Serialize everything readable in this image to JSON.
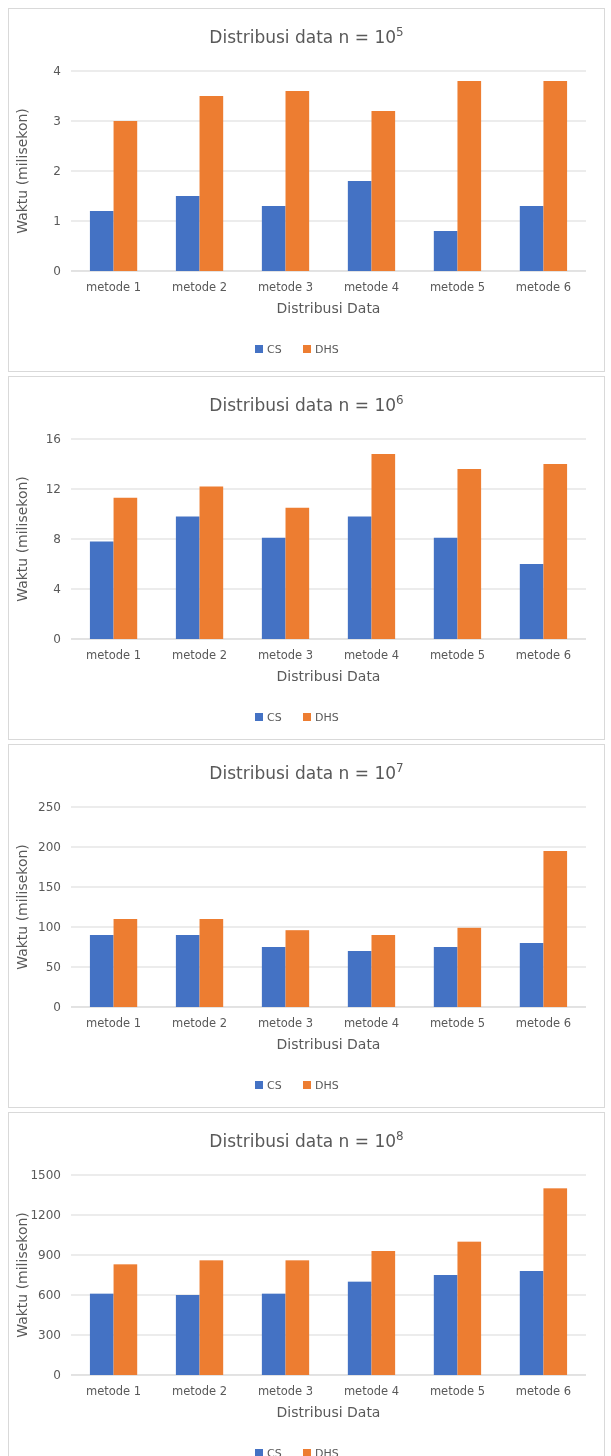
{
  "chart_data": [
    {
      "type": "bar",
      "title": "Distribusi data n = 10$^{5}$",
      "xlabel": "Distribusi Data",
      "ylabel": "Waktu (milisekon)",
      "categories": [
        "metode 1",
        "metode 2",
        "metode 3",
        "metode 4",
        "metode 5",
        "metode 6"
      ],
      "series": [
        {
          "name": "CS",
          "color": "#4472c4",
          "values": [
            1.2,
            1.5,
            1.3,
            1.8,
            0.8,
            1.3
          ]
        },
        {
          "name": "DHS",
          "color": "#ed7d31",
          "values": [
            3.0,
            3.5,
            3.6,
            3.2,
            3.8,
            3.8
          ]
        }
      ],
      "ylim": [
        0,
        4
      ],
      "yticks": [
        0,
        1,
        2,
        3,
        4
      ],
      "grid": "y",
      "legend": "bottom"
    },
    {
      "type": "bar",
      "title": "Distribusi data n = 10$^{6}$",
      "xlabel": "Distribusi Data",
      "ylabel": "Waktu (milisekon)",
      "categories": [
        "metode 1",
        "metode 2",
        "metode 3",
        "metode 4",
        "metode 5",
        "metode 6"
      ],
      "series": [
        {
          "name": "CS",
          "color": "#4472c4",
          "values": [
            7.8,
            9.8,
            8.1,
            9.8,
            8.1,
            6.0
          ]
        },
        {
          "name": "DHS",
          "color": "#ed7d31",
          "values": [
            11.3,
            12.2,
            10.5,
            14.8,
            13.6,
            14.0
          ]
        }
      ],
      "ylim": [
        0,
        16
      ],
      "yticks": [
        0,
        4,
        8,
        12,
        16
      ],
      "grid": "y",
      "legend": "bottom"
    },
    {
      "type": "bar",
      "title": "Distribusi data n = 10$^{7}$",
      "xlabel": "Distribusi Data",
      "ylabel": "Waktu (milisekon)",
      "categories": [
        "metode 1",
        "metode 2",
        "metode 3",
        "metode 4",
        "metode 5",
        "metode 6"
      ],
      "series": [
        {
          "name": "CS",
          "color": "#4472c4",
          "values": [
            90,
            90,
            75,
            70,
            75,
            80
          ]
        },
        {
          "name": "DHS",
          "color": "#ed7d31",
          "values": [
            110,
            110,
            96,
            90,
            99,
            195
          ]
        }
      ],
      "ylim": [
        0,
        250
      ],
      "yticks": [
        0,
        50,
        100,
        150,
        200,
        250
      ],
      "grid": "y",
      "legend": "bottom"
    },
    {
      "type": "bar",
      "title": "Distribusi data n = 10$^{8}$",
      "xlabel": "Distribusi Data",
      "ylabel": "Waktu (milisekon)",
      "categories": [
        "metode 1",
        "metode 2",
        "metode 3",
        "metode 4",
        "metode 5",
        "metode 6"
      ],
      "series": [
        {
          "name": "CS",
          "color": "#4472c4",
          "values": [
            610,
            600,
            610,
            700,
            750,
            780
          ]
        },
        {
          "name": "DHS",
          "color": "#ed7d31",
          "values": [
            830,
            860,
            860,
            930,
            1000,
            1400
          ]
        }
      ],
      "ylim": [
        0,
        1500
      ],
      "yticks": [
        0,
        300,
        600,
        900,
        1200,
        1500
      ],
      "grid": "y",
      "legend": "bottom"
    }
  ]
}
